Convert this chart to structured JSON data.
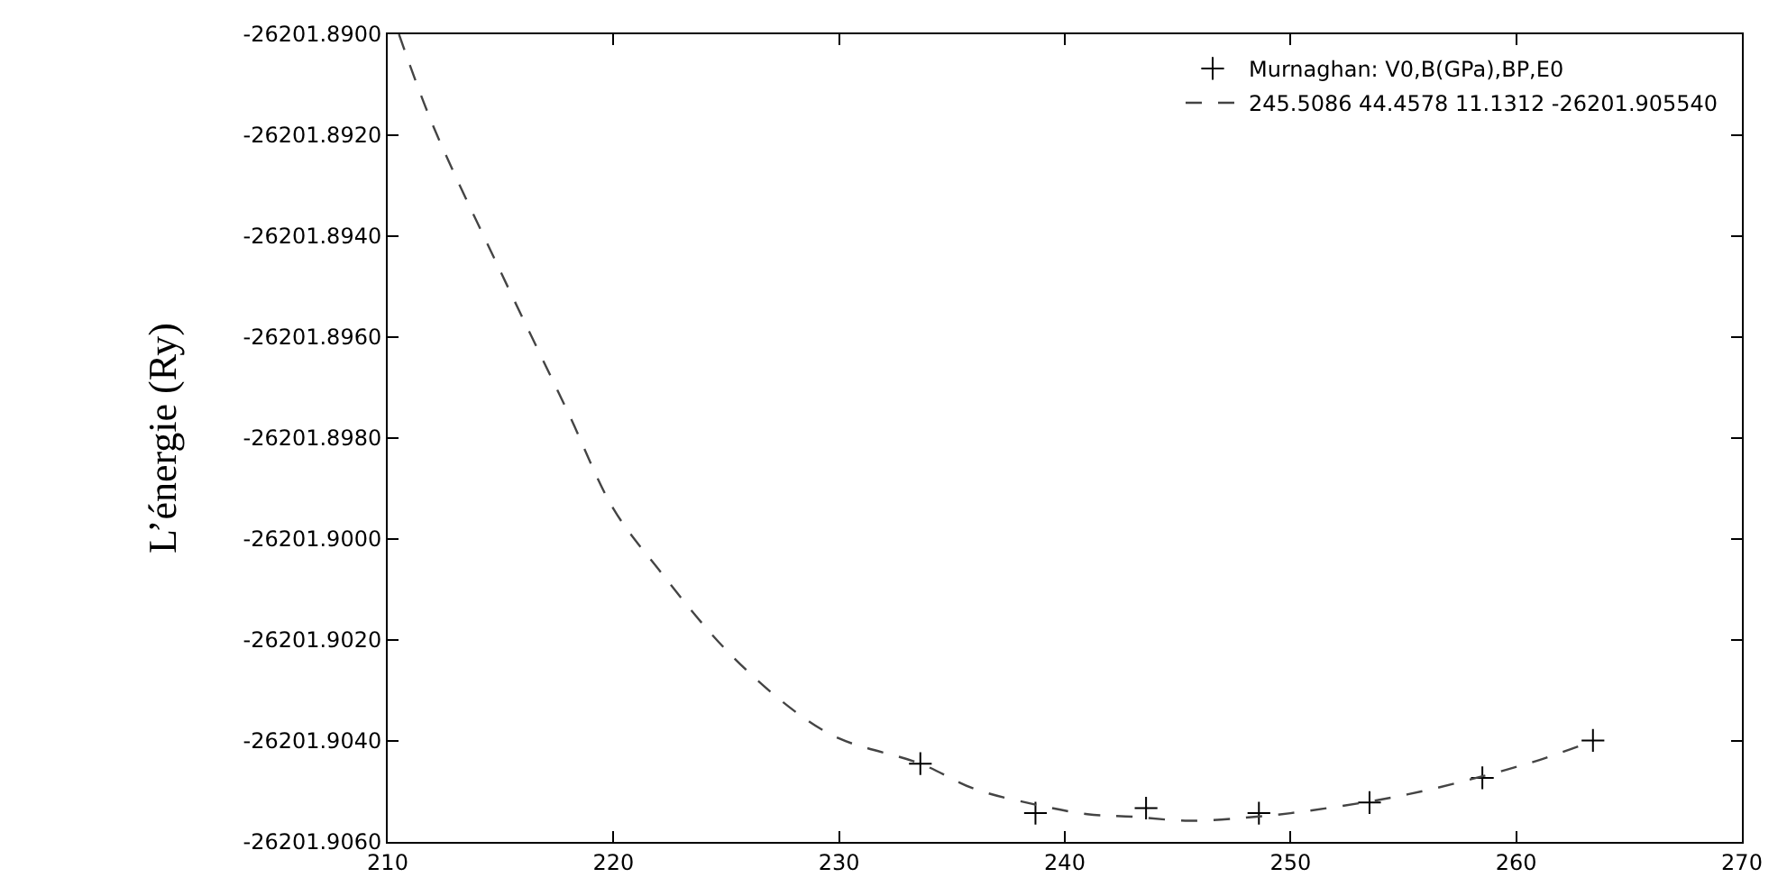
{
  "chart_data": {
    "type": "scatter",
    "ylabel": "L’énergie (Ry)",
    "xlim": [
      210,
      270
    ],
    "xticks": [
      210,
      220,
      230,
      240,
      250,
      260,
      270
    ],
    "ylim": [
      -26201.906,
      -26201.89
    ],
    "yticks": [
      {
        "value": -26201.906,
        "label": "-26201.9060"
      },
      {
        "value": -26201.904,
        "label": "-26201.9040"
      },
      {
        "value": -26201.902,
        "label": "-26201.9020"
      },
      {
        "value": -26201.9,
        "label": "-26201.9000"
      },
      {
        "value": -26201.898,
        "label": "-26201.8980"
      },
      {
        "value": -26201.896,
        "label": "-26201.8960"
      },
      {
        "value": -26201.894,
        "label": "-26201.8940"
      },
      {
        "value": -26201.892,
        "label": "-26201.8920"
      },
      {
        "value": -26201.89,
        "label": "-26201.8900"
      }
    ],
    "legend": "top right",
    "series": [
      {
        "name": "Murnaghan: V0,B(GPa),BP,E0",
        "marker": "cross",
        "color": "#000000",
        "x": [
          233.6,
          238.7,
          243.6,
          248.6,
          253.5,
          258.5,
          263.4
        ],
        "values": [
          -26201.90445,
          -26201.90543,
          -26201.90533,
          -26201.90543,
          -26201.90522,
          -26201.90473,
          -26201.90399
        ]
      },
      {
        "name": "245.5086 44.4578 11.1312 -26201.905540",
        "type": "line",
        "line_style": "dashed",
        "color": "#444444",
        "x": [
          210.5,
          212,
          215,
          218,
          220,
          222,
          225,
          228,
          230,
          233.6,
          236,
          238.7,
          241,
          243,
          245.5,
          248,
          250,
          253.5,
          256,
          258.5,
          261,
          263.4
        ],
        "values": [
          -26201.89,
          -26201.8918,
          -26201.8947,
          -26201.8975,
          -26201.8994,
          -26201.9006,
          -26201.9022,
          -26201.9034,
          -26201.90395,
          -26201.90445,
          -26201.90495,
          -26201.90526,
          -26201.90545,
          -26201.9055,
          -26201.90558,
          -26201.90552,
          -26201.90543,
          -26201.9052,
          -26201.90498,
          -26201.9047,
          -26201.90438,
          -26201.904
        ]
      }
    ]
  }
}
